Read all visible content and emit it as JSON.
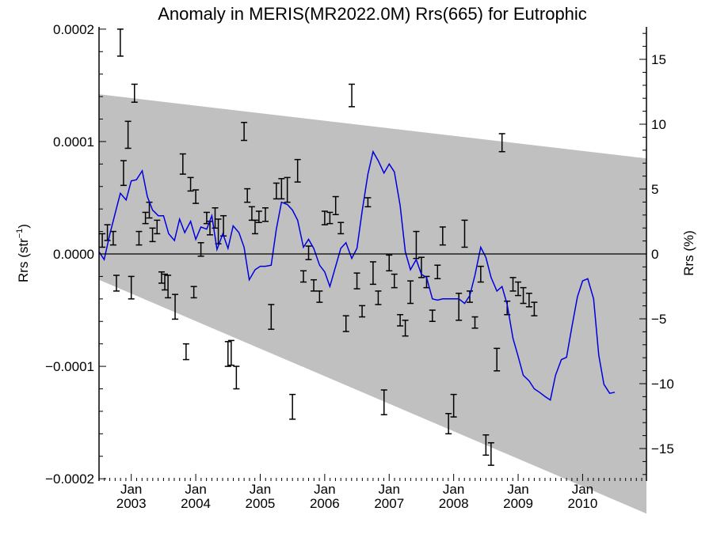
{
  "chart_data": {
    "type": "line",
    "title": "Anomaly in MERIS(MR2022.0M) Rrs(665) for Eutrophic",
    "ylabel_left": "Rrs (str",
    "ylabel_left_sup": "−1",
    "ylabel_left_close": ")",
    "ylabel_right": "Rrs (%)",
    "ylim_left": [
      -0.000202,
      0.000202
    ],
    "ylim_right": [
      -17.5,
      17.5
    ],
    "xlim_months": [
      2002.5,
      2010.99
    ],
    "grid": false,
    "x_ticks": [
      {
        "month": "Jan",
        "year": "2003",
        "x": 2003.0
      },
      {
        "month": "Jan",
        "year": "2004",
        "x": 2004.0
      },
      {
        "month": "Jan",
        "year": "2005",
        "x": 2005.0
      },
      {
        "month": "Jan",
        "year": "2006",
        "x": 2006.0
      },
      {
        "month": "Jan",
        "year": "2007",
        "x": 2007.0
      },
      {
        "month": "Jan",
        "year": "2008",
        "x": 2008.0
      },
      {
        "month": "Jan",
        "year": "2009",
        "x": 2009.0
      },
      {
        "month": "Jan",
        "year": "2010",
        "x": 2010.0
      }
    ],
    "y_ticks_left": [
      {
        "value": 0.0002,
        "label": "0.0002"
      },
      {
        "value": 0.0001,
        "label": "0.0001"
      },
      {
        "value": 0.0,
        "label": "0.0000"
      },
      {
        "value": -0.0001,
        "label": "−0.0001"
      },
      {
        "value": -0.0002,
        "label": "−0.0002"
      }
    ],
    "y_ticks_right": [
      {
        "value": 15,
        "label": "15"
      },
      {
        "value": 10,
        "label": "10"
      },
      {
        "value": 5,
        "label": "5"
      },
      {
        "value": 0,
        "label": "0"
      },
      {
        "value": -5,
        "label": "−5"
      },
      {
        "value": -10,
        "label": "−10"
      },
      {
        "value": -15,
        "label": "−15"
      }
    ],
    "envelope": {
      "color": "#c0c0c0",
      "upper": [
        [
          2002.5,
          0.000142
        ],
        [
          2010.99,
          8.5e-05
        ]
      ],
      "lower": [
        [
          2002.5,
          -2.3e-05
        ],
        [
          2010.99,
          -0.000231
        ]
      ]
    },
    "colors": {
      "line": "#0000dd",
      "errorbars": "#000000",
      "zero_line": "#000000"
    },
    "series": [
      {
        "type": "line",
        "points": [
          [
            2002.5,
            2e-06
          ],
          [
            2002.58,
            -5e-06
          ],
          [
            2002.67,
            1.8e-05
          ],
          [
            2002.75,
            3.6e-05
          ],
          [
            2002.83,
            5.4e-05
          ],
          [
            2002.92,
            4.8e-05
          ],
          [
            2003.0,
            6.5e-05
          ],
          [
            2003.08,
            6.6e-05
          ],
          [
            2003.17,
            7.4e-05
          ],
          [
            2003.25,
            5.1e-05
          ],
          [
            2003.33,
            3.9e-05
          ],
          [
            2003.42,
            3.4e-05
          ],
          [
            2003.5,
            3.4e-05
          ],
          [
            2003.58,
            1.8e-05
          ],
          [
            2003.67,
            1.2e-05
          ],
          [
            2003.75,
            3.1e-05
          ],
          [
            2003.83,
            1.9e-05
          ],
          [
            2003.92,
            2.9e-05
          ],
          [
            2004.0,
            1.3e-05
          ],
          [
            2004.08,
            2.4e-05
          ],
          [
            2004.17,
            2.2e-05
          ],
          [
            2004.25,
            3.4e-05
          ],
          [
            2004.33,
            4e-06
          ],
          [
            2004.42,
            1.8e-05
          ],
          [
            2004.5,
            5e-06
          ],
          [
            2004.58,
            2.5e-05
          ],
          [
            2004.67,
            1.9e-05
          ],
          [
            2004.75,
            6e-06
          ],
          [
            2004.83,
            -2.3e-05
          ],
          [
            2004.92,
            -1.4e-05
          ],
          [
            2005.0,
            -1.1e-05
          ],
          [
            2005.08,
            -1.1e-05
          ],
          [
            2005.17,
            -1e-05
          ],
          [
            2005.25,
            2.2e-05
          ],
          [
            2005.33,
            4.6e-05
          ],
          [
            2005.42,
            4.4e-05
          ],
          [
            2005.5,
            3.9e-05
          ],
          [
            2005.58,
            3e-05
          ],
          [
            2005.67,
            6e-06
          ],
          [
            2005.75,
            1.3e-05
          ],
          [
            2005.83,
            5e-06
          ],
          [
            2005.92,
            -1e-05
          ],
          [
            2006.0,
            -1.6e-05
          ],
          [
            2006.08,
            -2.9e-05
          ],
          [
            2006.17,
            -1.1e-05
          ],
          [
            2006.25,
            5e-06
          ],
          [
            2006.33,
            1e-05
          ],
          [
            2006.42,
            -4e-06
          ],
          [
            2006.5,
            5e-06
          ],
          [
            2006.58,
            3.8e-05
          ],
          [
            2006.67,
            7.1e-05
          ],
          [
            2006.75,
            9.1e-05
          ],
          [
            2006.83,
            8.3e-05
          ],
          [
            2006.92,
            7.2e-05
          ],
          [
            2007.0,
            8e-05
          ],
          [
            2007.08,
            7.3e-05
          ],
          [
            2007.17,
            4.3e-05
          ],
          [
            2007.25,
            2e-06
          ],
          [
            2007.33,
            -1.4e-05
          ],
          [
            2007.42,
            -5e-06
          ],
          [
            2007.5,
            -1.8e-05
          ],
          [
            2007.58,
            -2.1e-05
          ],
          [
            2007.67,
            -4e-05
          ],
          [
            2007.75,
            -4.1e-05
          ],
          [
            2007.83,
            -4e-05
          ],
          [
            2007.92,
            -4e-05
          ],
          [
            2008.0,
            -4e-05
          ],
          [
            2008.08,
            -4e-05
          ],
          [
            2008.17,
            -4.4e-05
          ],
          [
            2008.25,
            -3.7e-05
          ],
          [
            2008.33,
            -1.9e-05
          ],
          [
            2008.42,
            6e-06
          ],
          [
            2008.5,
            -3e-06
          ],
          [
            2008.58,
            -2.1e-05
          ],
          [
            2008.67,
            -3.3e-05
          ],
          [
            2008.75,
            -2.9e-05
          ],
          [
            2008.83,
            -4.5e-05
          ],
          [
            2008.92,
            -7.5e-05
          ],
          [
            2009.0,
            -9.1e-05
          ],
          [
            2009.08,
            -0.000108
          ],
          [
            2009.17,
            -0.000113
          ],
          [
            2009.25,
            -0.00012
          ],
          [
            2009.33,
            -0.000123
          ],
          [
            2009.42,
            -0.000127
          ],
          [
            2009.5,
            -0.00013
          ],
          [
            2009.58,
            -0.000108
          ],
          [
            2009.67,
            -9.4e-05
          ],
          [
            2009.75,
            -9.2e-05
          ],
          [
            2009.83,
            -6.6e-05
          ],
          [
            2009.92,
            -3.8e-05
          ],
          [
            2010.0,
            -2.4e-05
          ],
          [
            2010.08,
            -2.2e-05
          ],
          [
            2010.17,
            -4e-05
          ],
          [
            2010.25,
            -9e-05
          ],
          [
            2010.33,
            -0.000116
          ],
          [
            2010.42,
            -0.000124
          ],
          [
            2010.5,
            -0.000123
          ]
        ]
      },
      {
        "type": "errorbar",
        "points": [
          [
            2002.55,
            1.2e-05,
            6e-06
          ],
          [
            2002.63,
            1.9e-05,
            7e-06
          ],
          [
            2002.72,
            1.4e-05,
            6e-06
          ],
          [
            2002.77,
            -2.6e-05,
            7e-06
          ],
          [
            2002.83,
            0.000188,
            1.2e-05
          ],
          [
            2002.88,
            7.2e-05,
            1.1e-05
          ],
          [
            2002.95,
            0.000106,
            1.2e-05
          ],
          [
            2003.0,
            -3e-05,
            1e-05
          ],
          [
            2003.05,
            0.000143,
            8e-06
          ],
          [
            2003.12,
            1.4e-05,
            6e-06
          ],
          [
            2003.22,
            3.2e-05,
            5e-06
          ],
          [
            2003.28,
            3.9e-05,
            7e-06
          ],
          [
            2003.33,
            1.7e-05,
            6e-06
          ],
          [
            2003.4,
            2.4e-05,
            6e-06
          ],
          [
            2003.47,
            -2.1e-05,
            5e-06
          ],
          [
            2003.52,
            -2.5e-05,
            7e-06
          ],
          [
            2003.57,
            -2.9e-05,
            1e-05
          ],
          [
            2003.68,
            -4.7e-05,
            1.1e-05
          ],
          [
            2003.8,
            8e-05,
            9e-06
          ],
          [
            2003.85,
            -8.7e-05,
            7e-06
          ],
          [
            2003.92,
            6.2e-05,
            6e-06
          ],
          [
            2003.97,
            -3.4e-05,
            5e-06
          ],
          [
            2004.0,
            5.1e-05,
            6e-06
          ],
          [
            2004.08,
            4e-06,
            6e-06
          ],
          [
            2004.17,
            3.2e-05,
            5e-06
          ],
          [
            2004.22,
            2.3e-05,
            6e-06
          ],
          [
            2004.3,
            3.2e-05,
            9e-06
          ],
          [
            2004.35,
            2e-05,
            1.1e-05
          ],
          [
            2004.43,
            2.5e-05,
            9e-06
          ],
          [
            2004.5,
            -8.9e-05,
            1.1e-05
          ],
          [
            2004.55,
            -8.8e-05,
            1.1e-05
          ],
          [
            2004.63,
            -0.00011,
            1e-05
          ],
          [
            2004.75,
            0.000109,
            8e-06
          ],
          [
            2004.8,
            5.2e-05,
            6e-06
          ],
          [
            2004.87,
            3.6e-05,
            6e-06
          ],
          [
            2004.92,
            2.4e-05,
            6e-06
          ],
          [
            2004.98,
            3.3e-05,
            5e-06
          ],
          [
            2005.08,
            3.5e-05,
            6e-06
          ],
          [
            2005.17,
            -5.6e-05,
            1.1e-05
          ],
          [
            2005.25,
            5.6e-05,
            7e-06
          ],
          [
            2005.33,
            5.8e-05,
            9e-06
          ],
          [
            2005.42,
            5.7e-05,
            1.1e-05
          ],
          [
            2005.5,
            -0.000136,
            1.1e-05
          ],
          [
            2005.58,
            7.4e-05,
            1e-05
          ],
          [
            2005.67,
            -2e-05,
            5e-06
          ],
          [
            2005.75,
            1e-06,
            6e-06
          ],
          [
            2005.83,
            -2.8e-05,
            5e-06
          ],
          [
            2005.92,
            -3.8e-05,
            5e-06
          ],
          [
            2006.0,
            3.2e-05,
            6e-06
          ],
          [
            2006.08,
            3.2e-05,
            5e-06
          ],
          [
            2006.17,
            4.3e-05,
            8e-06
          ],
          [
            2006.25,
            2.3e-05,
            5e-06
          ],
          [
            2006.33,
            -6.2e-05,
            7e-06
          ],
          [
            2006.42,
            0.000141,
            1e-05
          ],
          [
            2006.5,
            -2.4e-05,
            7e-06
          ],
          [
            2006.58,
            -5.1e-05,
            5e-06
          ],
          [
            2006.67,
            4.6e-05,
            4e-06
          ],
          [
            2006.75,
            -1.7e-05,
            1e-05
          ],
          [
            2006.83,
            -3.9e-05,
            6e-06
          ],
          [
            2006.92,
            -0.000132,
            1.1e-05
          ],
          [
            2007.0,
            -8e-06,
            7e-06
          ],
          [
            2007.08,
            -2.4e-05,
            6e-06
          ],
          [
            2007.17,
            -5.9e-05,
            5e-06
          ],
          [
            2007.25,
            -6.6e-05,
            7e-06
          ],
          [
            2007.33,
            -3.4e-05,
            1e-05
          ],
          [
            2007.42,
            8e-06,
            1.2e-05
          ],
          [
            2007.5,
            -1.2e-05,
            9e-06
          ],
          [
            2007.58,
            -2.5e-05,
            5e-06
          ],
          [
            2007.67,
            -5.5e-05,
            5e-06
          ],
          [
            2007.75,
            -1.6e-05,
            6e-06
          ],
          [
            2007.83,
            1.6e-05,
            8e-06
          ],
          [
            2007.92,
            -0.000151,
            9e-06
          ],
          [
            2008.0,
            -0.000135,
            1e-05
          ],
          [
            2008.08,
            -4.7e-05,
            1.2e-05
          ],
          [
            2008.17,
            1.8e-05,
            1.2e-05
          ],
          [
            2008.25,
            -3.8e-05,
            5e-06
          ],
          [
            2008.33,
            -6.1e-05,
            5e-06
          ],
          [
            2008.42,
            -1.8e-05,
            7e-06
          ],
          [
            2008.5,
            -0.00017,
            9e-06
          ],
          [
            2008.58,
            -0.000178,
            1e-05
          ],
          [
            2008.67,
            -9.4e-05,
            1e-05
          ],
          [
            2008.75,
            9.9e-05,
            8e-06
          ],
          [
            2008.83,
            -4.8e-05,
            6e-06
          ],
          [
            2008.92,
            -2.7e-05,
            6e-06
          ],
          [
            2009.0,
            -3.1e-05,
            6e-06
          ],
          [
            2009.08,
            -3.7e-05,
            7e-06
          ],
          [
            2009.17,
            -4.1e-05,
            6e-06
          ],
          [
            2009.25,
            -4.9e-05,
            6e-06
          ]
        ]
      }
    ]
  }
}
